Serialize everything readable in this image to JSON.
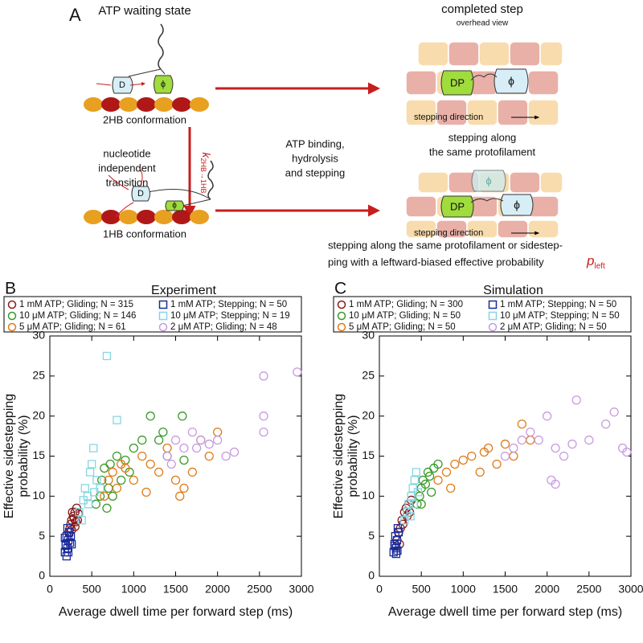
{
  "panel_a": {
    "letter": "A",
    "left_title": "ATP waiting state",
    "right_title": "completed step",
    "right_subtitle": "overhead view",
    "top_state": "2HB conformation",
    "bottom_state": "1HB conformation",
    "transition": [
      "nucleotide",
      "independent",
      "transition"
    ],
    "rate_label": {
      "symbol": "k",
      "subscript": "2HB→1HB"
    },
    "middle": [
      "ATP binding,",
      "hydrolysis",
      "and stepping"
    ],
    "top_result": [
      "stepping along",
      "the same protofilament"
    ],
    "direction_top": "stepping direction",
    "direction_bottom": "stepping direction",
    "head_d": "D",
    "head_phi": "ϕ",
    "head_d_bottom": "D",
    "head_phi_bottom": "ϕ",
    "dp_top": "DP",
    "phi_top": "ϕ",
    "dp_bottom": "DP",
    "phi_bottom": "ϕ",
    "phi_bottom_ghost": "ϕ",
    "caption": [
      "stepping along the same protofilament or sidestep-",
      "ping with a leftward-biased effective probability"
    ],
    "p_left": {
      "symbol": "p",
      "subscript": "left"
    }
  },
  "chart_data": [
    {
      "type": "scatter",
      "panel": "B",
      "title": "Experiment",
      "xlabel": "Average dwell time per forward step (ms)",
      "ylabel": [
        "Effective sidestepping",
        "probability (%)"
      ],
      "xlim": [
        0,
        3000
      ],
      "ylim": [
        0,
        30
      ],
      "xticks": [
        0,
        500,
        1000,
        1500,
        2000,
        2500,
        3000
      ],
      "yticks": [
        0,
        5,
        10,
        15,
        20,
        25,
        30
      ],
      "series": [
        {
          "name": "1 mM ATP; Gliding; N = 315",
          "color": "#8b1a1a",
          "marker": "circle",
          "x": [
            230,
            250,
            260,
            280,
            300,
            310,
            320,
            260,
            290,
            340,
            240,
            270,
            330,
            300
          ],
          "values": [
            5.5,
            6.5,
            7,
            7.5,
            8,
            6.8,
            8.5,
            5.8,
            7.2,
            7.8,
            6,
            8,
            7,
            6.2
          ]
        },
        {
          "name": "1 mM ATP; Stepping; N = 50",
          "color": "#1a2a9a",
          "marker": "square",
          "x": [
            180,
            190,
            200,
            210,
            220,
            230,
            200,
            190,
            240,
            210,
            250,
            220,
            180,
            260
          ],
          "values": [
            3,
            4,
            5,
            3.5,
            4.5,
            5.5,
            2.5,
            3.8,
            4.2,
            6,
            5,
            3,
            4.8,
            4
          ]
        },
        {
          "name": "10 μM ATP; Gliding; N = 146",
          "color": "#3a9a2a",
          "marker": "circle",
          "x": [
            550,
            600,
            620,
            650,
            700,
            720,
            750,
            800,
            850,
            900,
            950,
            1000,
            1100,
            1200,
            1300,
            1350,
            1400,
            1580,
            1600,
            680
          ],
          "values": [
            9,
            10,
            12,
            13.5,
            11,
            14,
            10,
            15,
            12,
            14.5,
            13,
            16,
            17,
            20,
            17,
            18,
            15,
            20,
            14.5,
            8.5
          ]
        },
        {
          "name": "10 μM ATP; Stepping; N = 19",
          "color": "#86d6e2",
          "marker": "square",
          "x": [
            350,
            400,
            420,
            450,
            480,
            500,
            520,
            560,
            600,
            680,
            800,
            380,
            460,
            530
          ],
          "values": [
            8,
            9.5,
            11,
            10,
            13,
            14,
            16,
            12,
            11,
            27.5,
            19.5,
            7,
            9,
            10.5
          ]
        },
        {
          "name": "5 μM ATP; Gliding; N = 61",
          "color": "#e07b1a",
          "marker": "circle",
          "x": [
            650,
            700,
            750,
            800,
            850,
            900,
            1000,
            1100,
            1200,
            1300,
            1400,
            1500,
            1550,
            1600,
            1700,
            1800,
            1900,
            2000,
            1150
          ],
          "values": [
            10,
            12,
            13,
            11,
            14,
            13.5,
            12,
            15,
            14,
            13,
            16,
            12,
            10,
            11,
            13,
            17,
            15,
            18,
            10.5
          ]
        },
        {
          "name": "2 μM ATP; Gliding; N = 48",
          "color": "#c79be0",
          "marker": "circle",
          "x": [
            1400,
            1500,
            1600,
            1700,
            1800,
            1900,
            2000,
            2100,
            2200,
            2550,
            2550,
            2550,
            2950,
            1450,
            1750
          ],
          "values": [
            15,
            17,
            16,
            18,
            17,
            16.5,
            17,
            15,
            15.5,
            25,
            18,
            20,
            25.5,
            14,
            16
          ]
        }
      ]
    },
    {
      "type": "scatter",
      "panel": "C",
      "title": "Simulation",
      "xlabel": "Average dwell time per forward step (ms)",
      "ylabel": [
        "Effective sidestepping",
        "probability (%)"
      ],
      "xlim": [
        0,
        3000
      ],
      "ylim": [
        0,
        30
      ],
      "xticks": [
        0,
        500,
        1000,
        1500,
        2000,
        2500,
        3000
      ],
      "yticks": [
        0,
        5,
        10,
        15,
        20,
        25,
        30
      ],
      "series": [
        {
          "name": "1 mM ATP; Gliding; N = 300",
          "color": "#8b1a1a",
          "marker": "circle",
          "x": [
            210,
            230,
            250,
            270,
            300,
            320,
            350,
            380,
            280,
            330,
            240,
            360
          ],
          "values": [
            4.5,
            5.5,
            6,
            7,
            8,
            8.5,
            9,
            9.5,
            6.5,
            7.5,
            4,
            8
          ]
        },
        {
          "name": "1 mM ATP; Stepping; N = 50",
          "color": "#1a2a9a",
          "marker": "square",
          "x": [
            170,
            180,
            190,
            200,
            210,
            220,
            200,
            230,
            185,
            215
          ],
          "values": [
            3,
            4,
            5,
            3.5,
            4.5,
            6,
            2.8,
            5.5,
            3.8,
            3.2
          ]
        },
        {
          "name": "10 μM ATP; Gliding; N = 50",
          "color": "#3a9a2a",
          "marker": "circle",
          "x": [
            450,
            480,
            500,
            520,
            550,
            580,
            600,
            650,
            700,
            620,
            500
          ],
          "values": [
            9,
            10,
            11,
            12,
            11.5,
            13,
            12.5,
            13.5,
            14,
            10.5,
            9
          ]
        },
        {
          "name": "10 μM ATP; Stepping; N = 50",
          "color": "#86d6e2",
          "marker": "square",
          "x": [
            300,
            330,
            350,
            380,
            400,
            420,
            440,
            460,
            370,
            410
          ],
          "values": [
            7,
            8,
            9,
            10,
            11,
            12,
            13,
            10.5,
            7.5,
            9
          ]
        },
        {
          "name": "5 μM ATP; Gliding; N = 50",
          "color": "#e07b1a",
          "marker": "circle",
          "x": [
            700,
            800,
            900,
            1000,
            1100,
            1200,
            1300,
            1400,
            1500,
            1600,
            1700,
            1800,
            850,
            1250
          ],
          "values": [
            12,
            13,
            14,
            14.5,
            15,
            13,
            16,
            14,
            16.5,
            15,
            19,
            17,
            11,
            15.5
          ]
        },
        {
          "name": "2 μM ATP; Gliding; N = 50",
          "color": "#c79be0",
          "marker": "circle",
          "x": [
            1500,
            1600,
            1700,
            1800,
            1900,
            2000,
            2100,
            2100,
            2200,
            2300,
            2350,
            2500,
            2700,
            2800,
            2900,
            2950,
            2050
          ],
          "values": [
            15,
            16,
            17,
            18,
            17,
            20,
            11.5,
            16,
            15,
            16.5,
            22,
            17,
            19,
            20.5,
            16,
            15.5,
            12
          ]
        }
      ]
    }
  ]
}
